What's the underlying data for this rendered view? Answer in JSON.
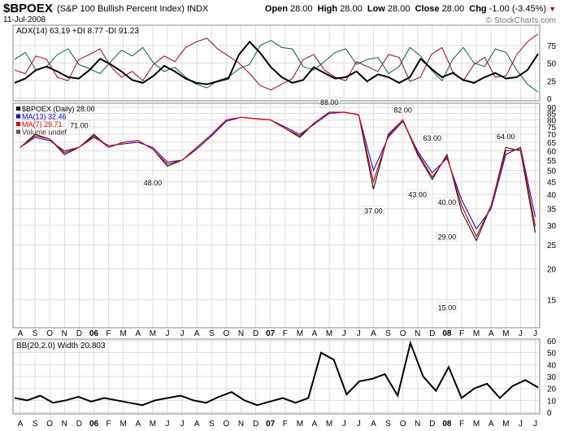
{
  "header": {
    "ticker": "$BPOEX",
    "name": "(S&P 100 Bullish Percent Index)",
    "exchange": "INDX",
    "date": "11-Jul-2008",
    "open_label": "Open",
    "open": "28.00",
    "high_label": "High",
    "high": "28.00",
    "low_label": "Low",
    "low": "28.00",
    "close_label": "Close",
    "close": "28.00",
    "chg_label": "Chg",
    "chg": "-1.00 (-3.45%)",
    "watermark": "© StockCharts.com"
  },
  "colors": {
    "price": "#000000",
    "ma13": "#0000cc",
    "ma7": "#dd0000",
    "plus_di": "#006633",
    "minus_di": "#990033",
    "adx": "#000000",
    "grid": "#dddddd",
    "frame": "#888888"
  },
  "x_axis_labels": [
    "A",
    "S",
    "O",
    "N",
    "D",
    "06",
    "F",
    "M",
    "A",
    "M",
    "J",
    "J",
    "A",
    "S",
    "O",
    "N",
    "D",
    "07",
    "F",
    "M",
    "A",
    "M",
    "J",
    "J",
    "A",
    "S",
    "O",
    "N",
    "D",
    "08",
    "F",
    "M",
    "A",
    "M",
    "J",
    "J"
  ],
  "x_axis_bold": [
    "06",
    "07",
    "08"
  ],
  "chart_data": [
    {
      "type": "line",
      "title": "ADX(14) 63.19 +DI 8.77 -DI 91.23",
      "ylim": [
        0,
        100
      ],
      "yticks": [
        0,
        25,
        50,
        75
      ],
      "series": [
        {
          "name": "ADX(14) 63.19",
          "values": [
            22,
            28,
            40,
            45,
            38,
            30,
            28,
            40,
            56,
            48,
            38,
            26,
            22,
            32,
            46,
            38,
            28,
            22,
            20,
            24,
            28,
            62,
            80,
            64,
            44,
            30,
            22,
            26,
            44,
            36,
            28,
            30,
            38,
            24,
            34,
            30,
            22,
            30,
            56,
            42,
            30,
            36,
            26,
            22,
            30,
            36,
            28,
            30,
            40,
            63
          ]
        },
        {
          "name": "+DI 8.77",
          "values": [
            55,
            65,
            40,
            45,
            62,
            70,
            48,
            42,
            35,
            52,
            68,
            60,
            72,
            50,
            38,
            44,
            30,
            20,
            15,
            25,
            30,
            42,
            48,
            75,
            82,
            72,
            70,
            45,
            40,
            52,
            65,
            70,
            48,
            55,
            58,
            35,
            45,
            72,
            60,
            40,
            25,
            55,
            72,
            50,
            45,
            70,
            65,
            40,
            20,
            8.77
          ]
        },
        {
          "name": "-DI 91.23",
          "values": [
            40,
            35,
            60,
            55,
            30,
            25,
            55,
            62,
            70,
            45,
            30,
            38,
            25,
            48,
            60,
            52,
            72,
            80,
            85,
            70,
            60,
            50,
            35,
            18,
            12,
            20,
            28,
            55,
            62,
            40,
            30,
            25,
            52,
            45,
            38,
            62,
            58,
            24,
            30,
            62,
            72,
            38,
            25,
            48,
            58,
            30,
            32,
            62,
            80,
            91.23
          ]
        }
      ]
    },
    {
      "type": "line",
      "title": "$BPOEX (Daily) 28.00",
      "ylabel": "",
      "scale": "log",
      "ylim": [
        12,
        90
      ],
      "yticks": [
        15,
        20,
        25,
        30,
        35,
        40,
        45,
        50,
        55,
        60,
        65,
        70,
        75,
        80,
        85,
        90
      ],
      "x": [
        "2005-08",
        "2005-09",
        "2005-10",
        "2005-11",
        "2005-12",
        "2006-01",
        "2006-02",
        "2006-03",
        "2006-04",
        "2006-05",
        "2006-06",
        "2006-07",
        "2006-08",
        "2006-09",
        "2006-10",
        "2006-11",
        "2006-12",
        "2007-01",
        "2007-02",
        "2007-03",
        "2007-04",
        "2007-05",
        "2007-06",
        "2007-07",
        "2007-08",
        "2007-09",
        "2007-10",
        "2007-11",
        "2007-12",
        "2008-01",
        "2008-02",
        "2008-03",
        "2008-04",
        "2008-05",
        "2008-06",
        "2008-07"
      ],
      "series": [
        {
          "name": "$BPOEX (Daily) 28.00",
          "values": [
            62,
            70,
            67,
            58,
            62,
            70,
            62,
            65,
            66,
            61,
            52,
            55,
            62,
            70,
            80,
            82,
            81,
            80,
            74,
            68,
            78,
            86,
            86,
            84,
            42,
            70,
            80,
            58,
            46,
            58,
            34,
            26,
            36,
            62,
            60,
            28
          ]
        },
        {
          "name": "MA(13) 32.46",
          "values": [
            62,
            68,
            66,
            60,
            62,
            68,
            63,
            64,
            65,
            62,
            54,
            55,
            61,
            69,
            79,
            82,
            81,
            80,
            75,
            70,
            77,
            85,
            86,
            84,
            50,
            68,
            79,
            60,
            49,
            56,
            38,
            29,
            35,
            58,
            62,
            32.46
          ]
        },
        {
          "name": "MA(7) 29.71",
          "values": [
            62,
            69,
            67,
            59,
            62,
            69,
            62,
            65,
            66,
            61,
            53,
            55,
            62,
            70,
            80,
            82,
            81,
            80,
            74,
            69,
            78,
            86,
            86,
            84,
            45,
            69,
            80,
            59,
            47,
            57,
            36,
            27,
            36,
            60,
            61,
            29.71
          ]
        }
      ],
      "legend": [
        "$BPOEX (Daily) 28.00",
        "MA(13) 32.46",
        "MA(7) 29.71",
        "Volume undef"
      ],
      "annotations": [
        {
          "label": "71.00",
          "x": "2005-12",
          "y": 71
        },
        {
          "label": "48.00",
          "x": "2006-05",
          "y": 48
        },
        {
          "label": "88.00",
          "x": "2007-05",
          "y": 88
        },
        {
          "label": "37.00",
          "x": "2007-08",
          "y": 37
        },
        {
          "label": "82.00",
          "x": "2007-10",
          "y": 82
        },
        {
          "label": "63.00",
          "x": "2007-12",
          "y": 63
        },
        {
          "label": "43.00",
          "x": "2007-11",
          "y": 43
        },
        {
          "label": "40.00",
          "x": "2008-01",
          "y": 40
        },
        {
          "label": "29.00",
          "x": "2008-01",
          "y": 29
        },
        {
          "label": "15.00",
          "x": "2008-01",
          "y": 15
        },
        {
          "label": "64.00",
          "x": "2008-05",
          "y": 64
        }
      ]
    },
    {
      "type": "line",
      "title": "BB(20,2.0) Width 20.803",
      "ylim": [
        0,
        60
      ],
      "yticks": [
        0,
        10,
        20,
        30,
        40,
        50,
        60
      ],
      "series": [
        {
          "name": "BB(20,2.0) Width 20.803",
          "values": [
            12,
            10,
            14,
            8,
            10,
            13,
            9,
            12,
            10,
            8,
            6,
            10,
            12,
            14,
            10,
            8,
            13,
            17,
            10,
            6,
            9,
            12,
            8,
            12,
            50,
            44,
            15,
            26,
            28,
            32,
            14,
            58,
            30,
            18,
            38,
            12,
            20,
            24,
            12,
            22,
            27,
            20.8
          ]
        }
      ]
    }
  ]
}
